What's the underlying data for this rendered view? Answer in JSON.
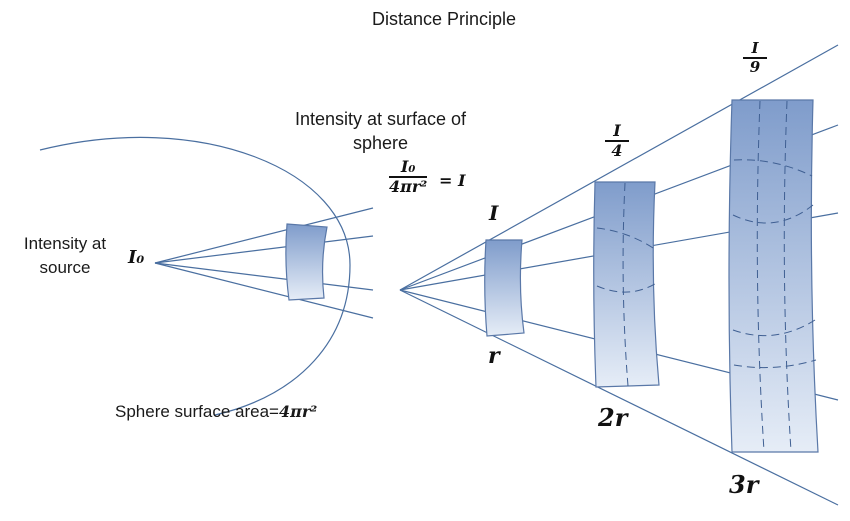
{
  "title": "Distance Principle",
  "labels": {
    "intensity_surface": "Intensity at surface of sphere",
    "intensity_source": "Intensity at source",
    "sphere_area_text": "Sphere surface area=",
    "sphere_area_formula": "4πr²"
  },
  "symbols": {
    "source": "I₀",
    "formula_numerator": "I₀",
    "formula_denominator": "4πr²",
    "formula_result": "= I",
    "intensity_1": "I",
    "intensity_2_num": "I",
    "intensity_2_den": "4",
    "intensity_3_num": "I",
    "intensity_3_den": "9",
    "dist_1": "r",
    "dist_2": "2r",
    "dist_3": "3r"
  },
  "colors": {
    "line": "#4a6fa0",
    "panel_top": "#7f9ccb",
    "panel_bottom": "#e3ebf6",
    "panel_stroke": "#5a78a8"
  }
}
